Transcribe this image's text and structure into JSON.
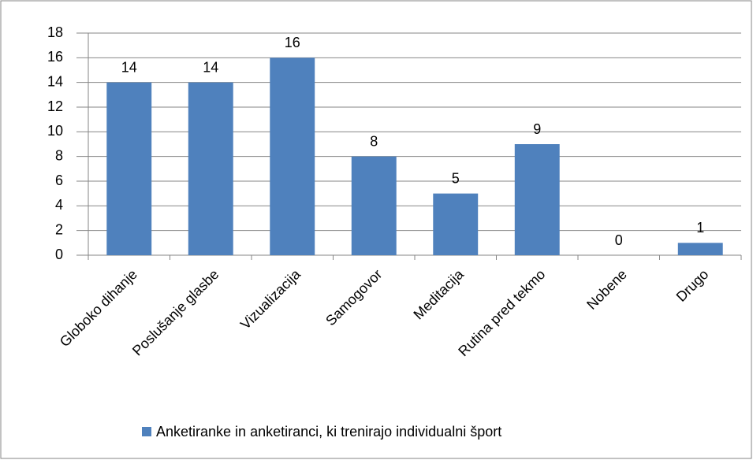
{
  "chart_data": {
    "type": "bar",
    "categories": [
      "Globoko dihanje",
      "Poslušanje glasbe",
      "Vizualizacija",
      "Samogovor",
      "Meditacija",
      "Rutina pred tekmo",
      "Nobene",
      "Drugo"
    ],
    "series": [
      {
        "name": "Anketiranke in anketiranci, ki trenirajo individualni šport",
        "color": "#4f81bd",
        "values": [
          14,
          14,
          16,
          8,
          5,
          9,
          0,
          1
        ]
      }
    ],
    "ylim": [
      0,
      18
    ],
    "yticks": [
      0,
      2,
      4,
      6,
      8,
      10,
      12,
      14,
      16,
      18
    ],
    "grid": true,
    "legend": "bottom",
    "data_labels": true
  }
}
